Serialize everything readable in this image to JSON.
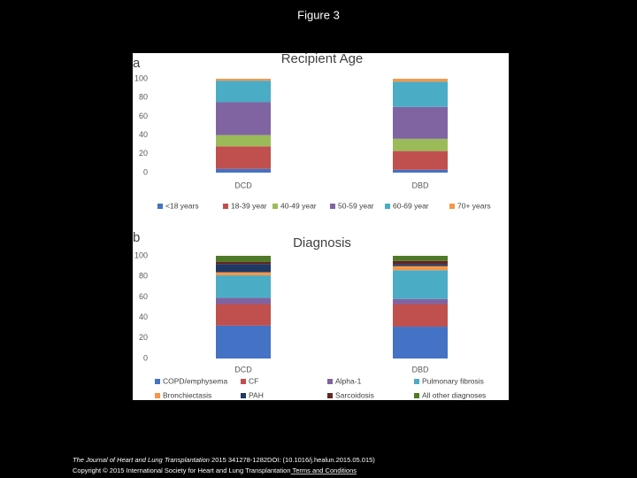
{
  "slide_title": "Figure 3",
  "footer": {
    "journal": "The Journal of Heart and Lung Transplantation",
    "citation": " 2015 341278-1282DOI: (10.1016/j.healun.2015.05.015)",
    "copyright": "Copyright © 2015 International Society for Heart and Lung Transplantation",
    "link": " Terms and Conditions"
  },
  "chart_data": [
    {
      "type": "bar",
      "stacked": true,
      "panel_label": "a",
      "title": "Recipient Age",
      "categories": [
        "DCD",
        "DBD"
      ],
      "ylim": [
        0,
        100
      ],
      "yticks": [
        0,
        20,
        40,
        60,
        80,
        100
      ],
      "grid": false,
      "legend": "bottom",
      "series": [
        {
          "name": "<18 years",
          "color": "#4472c4",
          "values": [
            4,
            3
          ]
        },
        {
          "name": "18-39 year",
          "color": "#c0504d",
          "values": [
            24,
            20
          ]
        },
        {
          "name": "40-49 year",
          "color": "#9bbb59",
          "values": [
            12,
            13
          ]
        },
        {
          "name": "50-59 year",
          "color": "#8064a2",
          "values": [
            35,
            34
          ]
        },
        {
          "name": "60-69 year",
          "color": "#4bacc6",
          "values": [
            23,
            27
          ]
        },
        {
          "name": "70+ years",
          "color": "#f79646",
          "values": [
            2,
            3
          ]
        }
      ]
    },
    {
      "type": "bar",
      "stacked": true,
      "panel_label": "b",
      "title": "Diagnosis",
      "categories": [
        "DCD",
        "DBD"
      ],
      "ylim": [
        0,
        100
      ],
      "yticks": [
        0,
        20,
        40,
        60,
        80,
        100
      ],
      "grid": false,
      "legend": "bottom",
      "series": [
        {
          "name": "COPD/emphysema",
          "color": "#4472c4",
          "values": [
            32,
            31
          ]
        },
        {
          "name": "CF",
          "color": "#c0504d",
          "values": [
            21,
            22
          ]
        },
        {
          "name": "Alpha-1",
          "color": "#8064a2",
          "values": [
            6,
            5
          ]
        },
        {
          "name": "Pulmonary fibrosis",
          "color": "#4bacc6",
          "values": [
            22,
            28
          ]
        },
        {
          "name": "Bronchiectasis",
          "color": "#f79646",
          "values": [
            3,
            4
          ]
        },
        {
          "name": "PAH",
          "color": "#1f3864",
          "values": [
            8,
            2
          ]
        },
        {
          "name": "Sarcoidosis",
          "color": "#632523",
          "values": [
            2,
            3
          ]
        },
        {
          "name": "All other diagnoses",
          "color": "#4f7a28",
          "values": [
            6,
            5
          ]
        }
      ]
    }
  ]
}
